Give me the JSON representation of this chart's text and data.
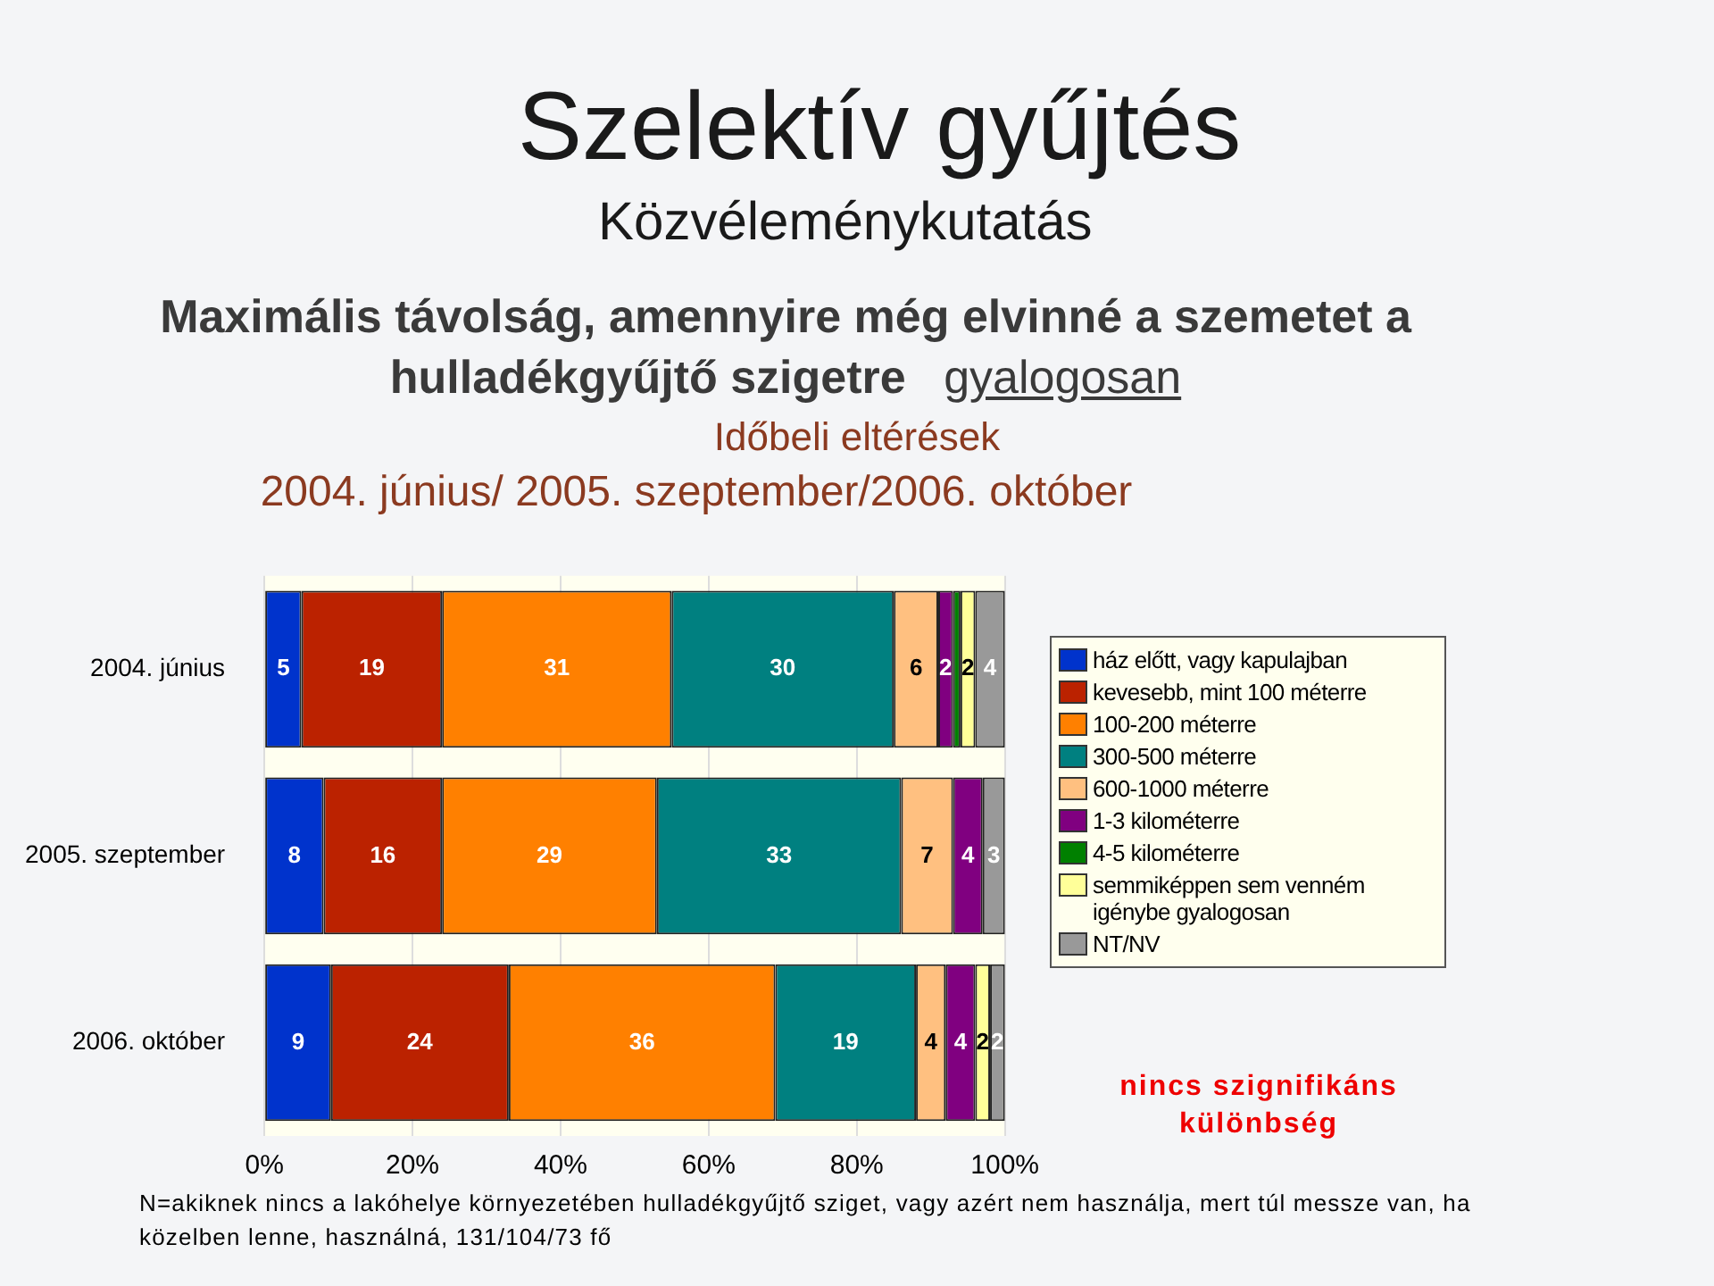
{
  "chart_data": {
    "type": "bar",
    "orientation": "horizontal",
    "stacked": true,
    "title": "Szelektív gyűjtés",
    "subtitle": "Közvéleménykutatás",
    "annotations": [
      "Maximális távolság, amennyire még elvinné a szemetet a hulladékgyűjtő szigetre gyalogosan",
      "Időbeli eltérések",
      "2004. június/ 2005. szeptember/2006. október",
      "nincs szignifikáns különbség",
      "N=akiknek nincs a lakóhelye környezetében hulladékgyűjtő sziget, vagy azért nem használja, mert túl messze van, ha közelben lenne, használná, 131/104/73 fő"
    ],
    "categories": [
      "2004. június",
      "2005. szeptember",
      "2006. október"
    ],
    "series": [
      {
        "name": "ház előtt, vagy kapulajban",
        "color": "#0033cc",
        "values": [
          5,
          8,
          9
        ],
        "value_labels": [
          "5",
          "8",
          "9"
        ]
      },
      {
        "name": "kevesebb, mint 100 méterre",
        "color": "#bb2200",
        "values": [
          19,
          16,
          24
        ],
        "value_labels": [
          "19",
          "16",
          "24"
        ]
      },
      {
        "name": "100-200 méterre",
        "color": "#ff8000",
        "values": [
          31,
          29,
          36
        ],
        "value_labels": [
          "31",
          "29",
          "36"
        ]
      },
      {
        "name": "300-500 méterre",
        "color": "#008080",
        "values": [
          30,
          33,
          19
        ],
        "value_labels": [
          "30",
          "33",
          "19"
        ]
      },
      {
        "name": "600-1000 méterre",
        "color": "#ffc080",
        "values": [
          6,
          7,
          4
        ],
        "value_labels": [
          "6",
          "7",
          "4"
        ]
      },
      {
        "name": "1-3 kilométerre",
        "color": "#800080",
        "values": [
          2,
          4,
          4
        ],
        "value_labels": [
          "2",
          "4",
          "4"
        ]
      },
      {
        "name": "4-5 kilométerre",
        "color": "#008000",
        "values": [
          1,
          0,
          0
        ],
        "value_labels": [
          null,
          null,
          null
        ]
      },
      {
        "name": "semmiképpen sem venném igénybe gyalogosan",
        "color": "#ffff99",
        "values": [
          2,
          0,
          2
        ],
        "value_labels": [
          "2",
          null,
          "2"
        ]
      },
      {
        "name": "NT/NV",
        "color": "#999999",
        "values": [
          4,
          3,
          2
        ],
        "value_labels": [
          "4",
          "3",
          "2"
        ]
      }
    ],
    "xlim": [
      0,
      100
    ],
    "xticks": [
      {
        "value": 0,
        "label": "0%"
      },
      {
        "value": 20,
        "label": "20%"
      },
      {
        "value": 40,
        "label": "40%"
      },
      {
        "value": 60,
        "label": "60%"
      },
      {
        "value": 80,
        "label": "80%"
      },
      {
        "value": 100,
        "label": "100%"
      }
    ],
    "grid": "x",
    "legend": "right"
  }
}
